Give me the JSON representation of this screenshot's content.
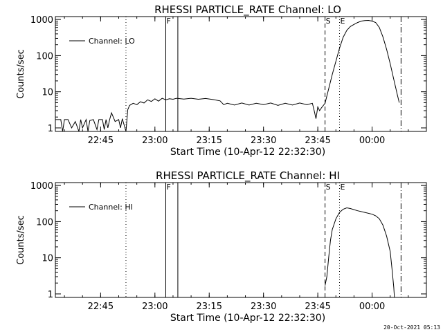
{
  "chart_data": [
    {
      "type": "line",
      "title": "RHESSI PARTICLE_RATE Channel: LO",
      "xlabel": "Start Time (10-Apr-12 22:32:30)",
      "ylabel": "Counts/sec",
      "yscale": "log",
      "xlim": [
        "22:32:30",
        "00:15:00"
      ],
      "ylim": [
        0.8,
        1200
      ],
      "x_ticks": [
        "22:45",
        "23:00",
        "23:15",
        "23:30",
        "23:45",
        "00:00"
      ],
      "y_ticks": [
        "1",
        "10",
        "100",
        "1000"
      ],
      "legend": {
        "label": "Channel: LO",
        "placement": "upper-left"
      },
      "markers": [
        {
          "label": "",
          "time": "22:52:00",
          "style": "dotted"
        },
        {
          "label": "F",
          "time": "23:03:00",
          "style": "solid"
        },
        {
          "label": "",
          "time": "23:06:20",
          "style": "solid"
        },
        {
          "label": "S",
          "time": "23:47:00",
          "style": "dashed"
        },
        {
          "label": "E",
          "time": "23:51:00",
          "style": "dotted"
        },
        {
          "label": "",
          "time": "00:08:00",
          "style": "dashdot"
        }
      ],
      "series": [
        {
          "name": "Channel: LO",
          "points": [
            [
              "22:32:30",
              1.7
            ],
            [
              "22:34:00",
              1.7
            ],
            [
              "22:34:30",
              0.8
            ],
            [
              "22:35:00",
              1.7
            ],
            [
              "22:36:00",
              1.7
            ],
            [
              "22:37:00",
              1.0
            ],
            [
              "22:38:00",
              1.5
            ],
            [
              "22:39:00",
              0.8
            ],
            [
              "22:39:30",
              1.7
            ],
            [
              "22:40:00",
              1.0
            ],
            [
              "22:41:00",
              1.7
            ],
            [
              "22:41:30",
              0.8
            ],
            [
              "22:42:00",
              1.6
            ],
            [
              "22:43:00",
              1.7
            ],
            [
              "22:44:00",
              0.9
            ],
            [
              "22:44:30",
              1.7
            ],
            [
              "22:45:30",
              1.7
            ],
            [
              "22:46:00",
              0.9
            ],
            [
              "22:46:30",
              1.7
            ],
            [
              "22:47:00",
              1.0
            ],
            [
              "22:47:30",
              1.7
            ],
            [
              "22:48:00",
              2.6
            ],
            [
              "22:49:00",
              1.5
            ],
            [
              "22:50:00",
              1.7
            ],
            [
              "22:50:30",
              1.0
            ],
            [
              "22:51:00",
              1.8
            ],
            [
              "22:52:00",
              0.8
            ],
            [
              "22:52:30",
              3.2
            ],
            [
              "22:53:00",
              4.2
            ],
            [
              "22:54:00",
              4.8
            ],
            [
              "22:55:00",
              4.4
            ],
            [
              "22:56:00",
              5.3
            ],
            [
              "22:57:00",
              4.9
            ],
            [
              "22:58:00",
              6.0
            ],
            [
              "22:59:00",
              5.4
            ],
            [
              "23:00:00",
              6.4
            ],
            [
              "23:01:00",
              5.5
            ],
            [
              "23:02:00",
              6.6
            ],
            [
              "23:03:00",
              6.0
            ],
            [
              "23:04:00",
              6.4
            ],
            [
              "23:05:00",
              6.2
            ],
            [
              "23:06:00",
              6.6
            ],
            [
              "23:08:00",
              6.3
            ],
            [
              "23:10:00",
              6.6
            ],
            [
              "23:12:00",
              6.2
            ],
            [
              "23:14:00",
              6.5
            ],
            [
              "23:16:00",
              6.1
            ],
            [
              "23:18:00",
              5.6
            ],
            [
              "23:19:00",
              4.4
            ],
            [
              "23:20:00",
              4.8
            ],
            [
              "23:22:00",
              4.3
            ],
            [
              "23:24:00",
              4.9
            ],
            [
              "23:26:00",
              4.3
            ],
            [
              "23:28:00",
              4.8
            ],
            [
              "23:30:00",
              4.4
            ],
            [
              "23:32:00",
              4.9
            ],
            [
              "23:34:00",
              4.2
            ],
            [
              "23:36:00",
              4.8
            ],
            [
              "23:38:00",
              4.3
            ],
            [
              "23:40:00",
              4.9
            ],
            [
              "23:42:00",
              4.4
            ],
            [
              "23:43:30",
              4.8
            ],
            [
              "23:44:00",
              3.0
            ],
            [
              "23:44:30",
              1.8
            ],
            [
              "23:45:00",
              3.8
            ],
            [
              "23:45:30",
              3.0
            ],
            [
              "23:46:00",
              3.6
            ],
            [
              "23:47:00",
              4.8
            ],
            [
              "23:48:00",
              12
            ],
            [
              "23:49:00",
              30
            ],
            [
              "23:50:00",
              70
            ],
            [
              "23:51:00",
              160
            ],
            [
              "23:52:00",
              320
            ],
            [
              "23:53:00",
              500
            ],
            [
              "23:54:00",
              640
            ],
            [
              "23:55:00",
              730
            ],
            [
              "23:56:00",
              820
            ],
            [
              "23:57:00",
              900
            ],
            [
              "23:58:00",
              930
            ],
            [
              "23:59:00",
              940
            ],
            [
              "00:00:00",
              900
            ],
            [
              "00:01:00",
              820
            ],
            [
              "00:02:00",
              600
            ],
            [
              "00:03:00",
              330
            ],
            [
              "00:04:00",
              150
            ],
            [
              "00:05:00",
              60
            ],
            [
              "00:06:00",
              22
            ],
            [
              "00:07:00",
              8
            ],
            [
              "00:07:30",
              5
            ]
          ]
        }
      ]
    },
    {
      "type": "line",
      "title": "RHESSI PARTICLE_RATE Channel: HI",
      "xlabel": "Start Time (10-Apr-12 22:32:30)",
      "ylabel": "Counts/sec",
      "yscale": "log",
      "xlim": [
        "22:32:30",
        "00:15:00"
      ],
      "ylim": [
        0.8,
        1200
      ],
      "x_ticks": [
        "22:45",
        "23:00",
        "23:15",
        "23:30",
        "23:45",
        "00:00"
      ],
      "y_ticks": [
        "1",
        "10",
        "100",
        "1000"
      ],
      "legend": {
        "label": "Channel: HI",
        "placement": "upper-left"
      },
      "markers": [
        {
          "label": "",
          "time": "22:52:00",
          "style": "dotted"
        },
        {
          "label": "F",
          "time": "23:03:00",
          "style": "solid"
        },
        {
          "label": "",
          "time": "23:06:20",
          "style": "solid"
        },
        {
          "label": "S",
          "time": "23:47:00",
          "style": "dashed"
        },
        {
          "label": "E",
          "time": "23:51:00",
          "style": "dotted"
        },
        {
          "label": "",
          "time": "00:08:00",
          "style": "dashdot"
        }
      ],
      "series": [
        {
          "name": "Channel: HI",
          "points": [
            [
              "23:47:00",
              1.7
            ],
            [
              "23:47:30",
              3
            ],
            [
              "23:48:00",
              10
            ],
            [
              "23:48:30",
              30
            ],
            [
              "23:49:00",
              60
            ],
            [
              "23:50:00",
              120
            ],
            [
              "23:51:00",
              180
            ],
            [
              "23:52:00",
              220
            ],
            [
              "23:53:00",
              240
            ],
            [
              "23:54:00",
              230
            ],
            [
              "23:56:00",
              200
            ],
            [
              "23:58:00",
              180
            ],
            [
              "00:00:00",
              160
            ],
            [
              "00:01:00",
              145
            ],
            [
              "00:02:00",
              120
            ],
            [
              "00:03:00",
              80
            ],
            [
              "00:04:00",
              40
            ],
            [
              "00:05:00",
              15
            ],
            [
              "00:05:30",
              5
            ],
            [
              "00:06:00",
              1.5
            ],
            [
              "00:06:10",
              0.8
            ]
          ]
        }
      ]
    }
  ],
  "footer": {
    "stamp": "20-Oct-2021 05:13"
  }
}
